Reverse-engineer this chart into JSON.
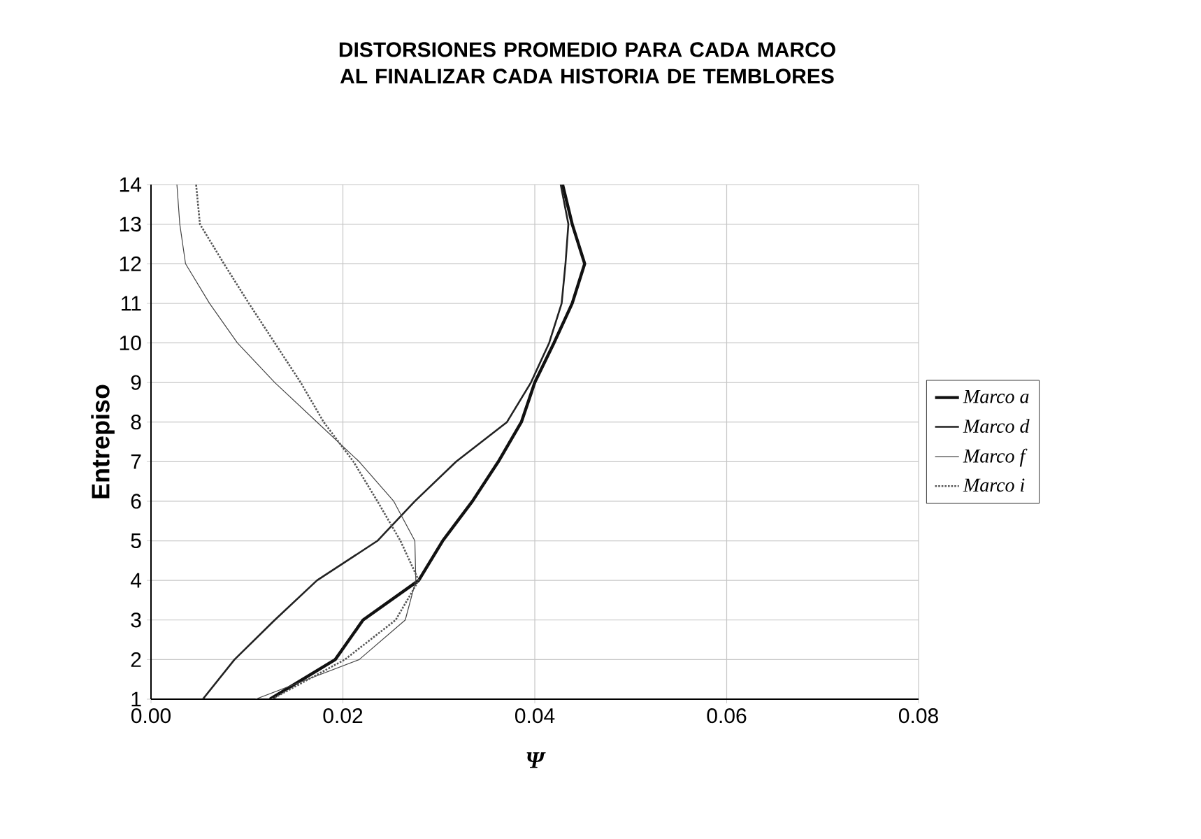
{
  "chart_data": {
    "type": "line",
    "title": "DISTORSIONES PROMEDIO PARA CADA MARCO AL FINALIZAR CADA HISTORIA DE TEMBLORES",
    "xlabel": "Ψ",
    "ylabel": "Entrepiso",
    "xlim": [
      0,
      0.08
    ],
    "xticks": [
      {
        "value": 0,
        "label": "0.00"
      },
      {
        "value": 0.02,
        "label": "0.02"
      },
      {
        "value": 0.04,
        "label": "0.04"
      },
      {
        "value": 0.06,
        "label": "0.06"
      },
      {
        "value": 0.08,
        "label": "0.08"
      }
    ],
    "ylim": [
      1,
      14
    ],
    "yticks": [
      1,
      2,
      3,
      4,
      5,
      6,
      7,
      8,
      9,
      10,
      11,
      12,
      13,
      14
    ],
    "grid": true,
    "legend": "right",
    "marker": "none",
    "series": [
      {
        "name": "Marco a",
        "color": "#111111",
        "line_style": "solid",
        "x": [
          0.0124,
          0.0192,
          0.0221,
          0.0279,
          0.0304,
          0.0335,
          0.0362,
          0.0386,
          0.04,
          0.042,
          0.0439,
          0.0452,
          0.0439,
          0.0429
        ],
        "values": [
          1,
          2,
          3,
          4,
          5,
          6,
          7,
          8,
          9,
          10,
          11,
          12,
          13,
          14
        ]
      },
      {
        "name": "Marco d",
        "color": "#222222",
        "line_style": "solid",
        "x": [
          0.0054,
          0.0087,
          0.0129,
          0.0173,
          0.0236,
          0.0275,
          0.0318,
          0.0371,
          0.0396,
          0.0415,
          0.0428,
          0.0432,
          0.0435,
          0.0427
        ],
        "values": [
          1,
          2,
          3,
          4,
          5,
          6,
          7,
          8,
          9,
          10,
          11,
          12,
          13,
          14
        ]
      },
      {
        "name": "Marco f",
        "color": "#444444",
        "line_style": "solid",
        "x": [
          0.0109,
          0.0217,
          0.0265,
          0.0276,
          0.0275,
          0.0253,
          0.0217,
          0.0173,
          0.0129,
          0.009,
          0.0061,
          0.0036,
          0.003,
          0.0027
        ],
        "values": [
          1,
          2,
          3,
          4,
          5,
          6,
          7,
          8,
          9,
          10,
          11,
          12,
          13,
          14
        ]
      },
      {
        "name": "Marco i",
        "color": "#555555",
        "line_style": "dotted",
        "x": [
          0.0126,
          0.0202,
          0.0255,
          0.0279,
          0.026,
          0.0236,
          0.0211,
          0.018,
          0.0156,
          0.0129,
          0.0102,
          0.0076,
          0.0051,
          0.0047
        ],
        "values": [
          1,
          2,
          3,
          4,
          5,
          6,
          7,
          8,
          9,
          10,
          11,
          12,
          13,
          14
        ]
      }
    ]
  }
}
